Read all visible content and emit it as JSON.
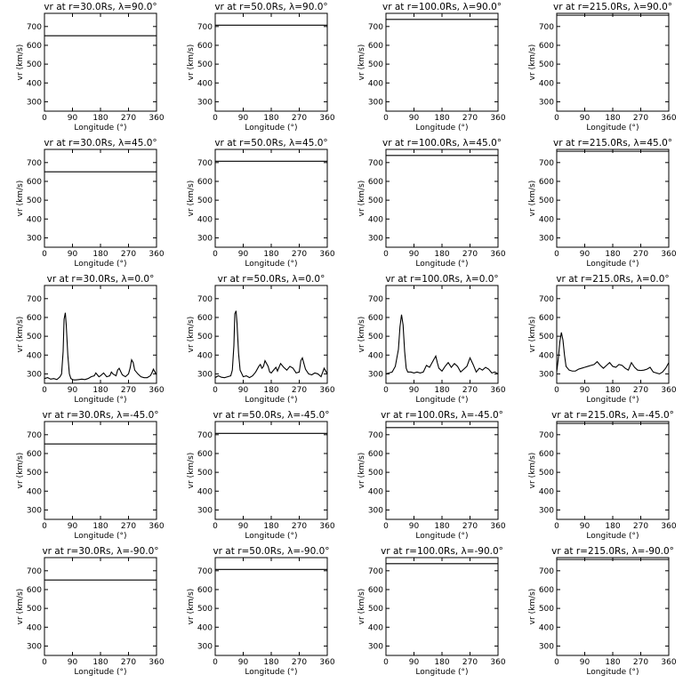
{
  "chart_data": {
    "type": "line",
    "rows": [
      90.0,
      45.0,
      0.0,
      -45.0,
      -90.0
    ],
    "cols": [
      30.0,
      50.0,
      100.0,
      215.0
    ],
    "xlim": [
      0,
      360
    ],
    "ylim": [
      250,
      770
    ],
    "xticks": [
      0,
      90,
      180,
      270,
      360
    ],
    "yticks": [
      300,
      400,
      500,
      600,
      700
    ],
    "xlabel": "Longitude (°)",
    "ylabel": "vr (km/s)",
    "title_template": "vr at r={r}Rs, λ={lat}°",
    "constant_speed_by_radius": {
      "30.0": 651,
      "50.0": 707,
      "100.0": 738,
      "215.0": 760
    },
    "equator_profiles": {
      "30.0": {
        "x": [
          0,
          10,
          20,
          30,
          40,
          50,
          55,
          60,
          63,
          67,
          70,
          75,
          80,
          85,
          90,
          95,
          100,
          110,
          120,
          130,
          140,
          150,
          160,
          165,
          170,
          175,
          180,
          190,
          200,
          210,
          215,
          220,
          230,
          235,
          240,
          250,
          260,
          270,
          275,
          280,
          285,
          290,
          300,
          310,
          320,
          330,
          340,
          345,
          350,
          355,
          360
        ],
        "y": [
          275,
          280,
          272,
          275,
          270,
          285,
          300,
          420,
          590,
          625,
          560,
          400,
          300,
          275,
          270,
          268,
          268,
          270,
          272,
          270,
          275,
          285,
          290,
          305,
          295,
          285,
          290,
          305,
          285,
          290,
          310,
          300,
          290,
          320,
          330,
          295,
          285,
          300,
          330,
          375,
          360,
          320,
          300,
          285,
          280,
          280,
          290,
          305,
          325,
          310,
          295
        ]
      },
      "50.0": {
        "x": [
          0,
          10,
          20,
          30,
          40,
          50,
          55,
          60,
          63,
          67,
          70,
          75,
          80,
          90,
          100,
          110,
          120,
          130,
          140,
          145,
          150,
          155,
          160,
          170,
          175,
          180,
          190,
          195,
          200,
          210,
          220,
          230,
          240,
          250,
          260,
          270,
          275,
          280,
          290,
          300,
          310,
          320,
          330,
          340,
          350,
          360
        ],
        "y": [
          280,
          290,
          282,
          280,
          285,
          290,
          320,
          450,
          620,
          635,
          570,
          410,
          320,
          285,
          290,
          280,
          290,
          310,
          340,
          350,
          330,
          340,
          370,
          340,
          310,
          305,
          325,
          335,
          315,
          355,
          335,
          320,
          340,
          330,
          305,
          310,
          370,
          385,
          325,
          300,
          295,
          305,
          300,
          285,
          330,
          300
        ]
      },
      "100.0": {
        "x": [
          0,
          10,
          20,
          30,
          40,
          45,
          50,
          55,
          60,
          65,
          70,
          80,
          90,
          100,
          110,
          120,
          130,
          140,
          150,
          160,
          165,
          170,
          180,
          190,
          200,
          210,
          220,
          230,
          240,
          250,
          260,
          270,
          280,
          290,
          300,
          310,
          320,
          330,
          340,
          350,
          360
        ],
        "y": [
          300,
          305,
          310,
          340,
          430,
          550,
          615,
          560,
          420,
          330,
          310,
          310,
          305,
          310,
          305,
          310,
          345,
          335,
          365,
          395,
          360,
          330,
          315,
          340,
          360,
          335,
          355,
          340,
          310,
          325,
          340,
          385,
          350,
          310,
          330,
          320,
          335,
          325,
          305,
          310,
          300
        ]
      },
      "215.0": {
        "x": [
          0,
          5,
          10,
          15,
          20,
          25,
          30,
          40,
          50,
          60,
          70,
          80,
          90,
          100,
          110,
          120,
          130,
          140,
          150,
          160,
          170,
          180,
          190,
          200,
          210,
          220,
          230,
          240,
          250,
          260,
          270,
          280,
          290,
          300,
          310,
          320,
          330,
          340,
          350,
          360
        ],
        "y": [
          310,
          380,
          470,
          520,
          480,
          400,
          340,
          320,
          315,
          315,
          325,
          330,
          335,
          340,
          345,
          350,
          365,
          345,
          330,
          345,
          360,
          340,
          335,
          350,
          345,
          330,
          320,
          360,
          335,
          320,
          318,
          320,
          325,
          335,
          310,
          305,
          300,
          310,
          330,
          360
        ]
      }
    }
  },
  "panels": [
    {
      "title": "vr at r=30.0Rs, λ=90.0°",
      "ylabel": "vr (km/s)",
      "xlabel": "Longitude (°)"
    },
    {
      "title": "vr at r=50.0Rs, λ=90.0°",
      "ylabel": "vr (km/s)",
      "xlabel": "Longitude (°)"
    },
    {
      "title": "vr at r=100.0Rs, λ=90.0°",
      "ylabel": "vr (km/s)",
      "xlabel": "Longitude (°)"
    },
    {
      "title": "vr at r=215.0Rs, λ=90.0°",
      "ylabel": "vr (km/s)",
      "xlabel": "Longitude (°)"
    },
    {
      "title": "vr at r=30.0Rs, λ=45.0°",
      "ylabel": "vr (km/s)",
      "xlabel": "Longitude (°)"
    },
    {
      "title": "vr at r=50.0Rs, λ=45.0°",
      "ylabel": "vr (km/s)",
      "xlabel": "Longitude (°)"
    },
    {
      "title": "vr at r=100.0Rs, λ=45.0°",
      "ylabel": "vr (km/s)",
      "xlabel": "Longitude (°)"
    },
    {
      "title": "vr at r=215.0Rs, λ=45.0°",
      "ylabel": "vr (km/s)",
      "xlabel": "Longitude (°)"
    },
    {
      "title": "vr at r=30.0Rs, λ=0.0°",
      "ylabel": "vr (km/s)",
      "xlabel": "Longitude (°)"
    },
    {
      "title": "vr at r=50.0Rs, λ=0.0°",
      "ylabel": "vr (km/s)",
      "xlabel": "Longitude (°)"
    },
    {
      "title": "vr at r=100.0Rs, λ=0.0°",
      "ylabel": "vr (km/s)",
      "xlabel": "Longitude (°)"
    },
    {
      "title": "vr at r=215.0Rs, λ=0.0°",
      "ylabel": "vr (km/s)",
      "xlabel": "Longitude (°)"
    },
    {
      "title": "vr at r=30.0Rs, λ=-45.0°",
      "ylabel": "vr (km/s)",
      "xlabel": "Longitude (°)"
    },
    {
      "title": "vr at r=50.0Rs, λ=-45.0°",
      "ylabel": "vr (km/s)",
      "xlabel": "Longitude (°)"
    },
    {
      "title": "vr at r=100.0Rs, λ=-45.0°",
      "ylabel": "vr (km/s)",
      "xlabel": "Longitude (°)"
    },
    {
      "title": "vr at r=215.0Rs, λ=-45.0°",
      "ylabel": "vr (km/s)",
      "xlabel": "Longitude (°)"
    },
    {
      "title": "vr at r=30.0Rs, λ=-90.0°",
      "ylabel": "vr (km/s)",
      "xlabel": "Longitude (°)"
    },
    {
      "title": "vr at r=50.0Rs, λ=-90.0°",
      "ylabel": "vr (km/s)",
      "xlabel": "Longitude (°)"
    },
    {
      "title": "vr at r=100.0Rs, λ=-90.0°",
      "ylabel": "vr (km/s)",
      "xlabel": "Longitude (°)"
    },
    {
      "title": "vr at r=215.0Rs, λ=-90.0°",
      "ylabel": "vr (km/s)",
      "xlabel": "Longitude (°)"
    }
  ]
}
